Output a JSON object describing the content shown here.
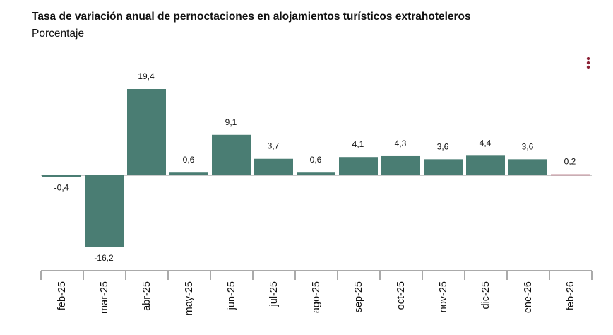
{
  "chart_data": {
    "type": "bar",
    "title": "Tasa de variación anual de pernoctaciones en alojamientos turísticos extrahoteleros",
    "subtitle": "Porcentaje",
    "categories": [
      "feb-25",
      "mar-25",
      "abr-25",
      "may-25",
      "jun-25",
      "jul-25",
      "ago-25",
      "sep-25",
      "oct-25",
      "nov-25",
      "dic-25",
      "ene-26",
      "feb-26"
    ],
    "values": [
      -0.4,
      -16.2,
      19.4,
      0.6,
      9.1,
      3.7,
      0.6,
      4.1,
      4.3,
      3.6,
      4.4,
      3.6,
      0.2
    ],
    "value_labels": [
      "-0,4",
      "-16,2",
      "19,4",
      "0,6",
      "9,1",
      "3,7",
      "0,6",
      "4,1",
      "4,3",
      "3,6",
      "4,4",
      "3,6",
      "0,2"
    ],
    "colors": [
      "#4a7d73",
      "#4a7d73",
      "#4a7d73",
      "#4a7d73",
      "#4a7d73",
      "#4a7d73",
      "#4a7d73",
      "#4a7d73",
      "#4a7d73",
      "#4a7d73",
      "#4a7d73",
      "#4a7d73",
      "#8b2236"
    ]
  }
}
